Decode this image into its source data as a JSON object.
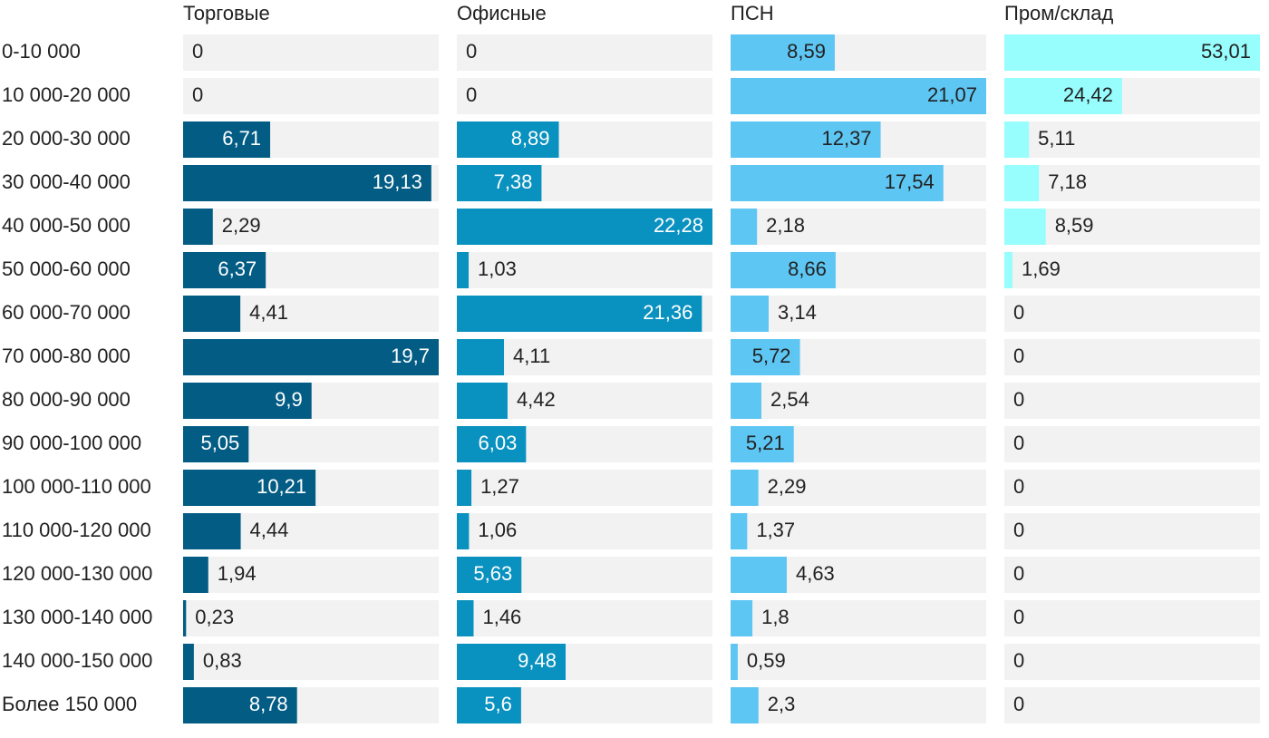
{
  "chart_data": {
    "type": "bar",
    "orientation": "horizontal",
    "layout": "small-multiples",
    "categories": [
      "0-10 000",
      "10 000-20 000",
      "20 000-30 000",
      "30 000-40 000",
      "40 000-50 000",
      "50 000-60 000",
      "60 000-70 000",
      "70 000-80 000",
      "80 000-90 000",
      "90 000-100 000",
      "100 000-110 000",
      "110 000-120 000",
      "120 000-130 000",
      "130 000-140 000",
      "140 000-150 000",
      "Более 150 000"
    ],
    "series": [
      {
        "name": "Торговые",
        "color": "#035c84",
        "xlim": [
          0,
          19.7
        ],
        "values": [
          0,
          0,
          6.71,
          19.13,
          2.29,
          6.37,
          4.41,
          19.7,
          9.9,
          5.05,
          10.21,
          4.44,
          1.94,
          0.23,
          0.83,
          8.78
        ],
        "labels": [
          "0",
          "0",
          "6,71",
          "19,13",
          "2,29",
          "6,37",
          "4,41",
          "19,7",
          "9,9",
          "5,05",
          "10,21",
          "4,44",
          "1,94",
          "0,23",
          "0,83",
          "8,78"
        ]
      },
      {
        "name": "Офисные",
        "color": "#0991bf",
        "xlim": [
          0,
          22.28
        ],
        "values": [
          0,
          0,
          8.89,
          7.38,
          22.28,
          1.03,
          21.36,
          4.11,
          4.42,
          6.03,
          1.27,
          1.06,
          5.63,
          1.46,
          9.48,
          5.6
        ],
        "labels": [
          "0",
          "0",
          "8,89",
          "7,38",
          "22,28",
          "1,03",
          "21,36",
          "4,11",
          "4,42",
          "6,03",
          "1,27",
          "1,06",
          "5,63",
          "1,46",
          "9,48",
          "5,6"
        ]
      },
      {
        "name": "ПСН",
        "color": "#5ec6f3",
        "xlim": [
          0,
          21.07
        ],
        "values": [
          8.59,
          21.07,
          12.37,
          17.54,
          2.18,
          8.66,
          3.14,
          5.72,
          2.54,
          5.21,
          2.29,
          1.37,
          4.63,
          1.8,
          0.59,
          2.3
        ],
        "labels": [
          "8,59",
          "21,07",
          "12,37",
          "17,54",
          "2,18",
          "8,66",
          "3,14",
          "5,72",
          "2,54",
          "5,21",
          "2,29",
          "1,37",
          "4,63",
          "1,8",
          "0,59",
          "2,3"
        ]
      },
      {
        "name": "Пром/склад",
        "color": "#97fdfd",
        "xlim": [
          0,
          53.01
        ],
        "values": [
          53.01,
          24.42,
          5.11,
          7.18,
          8.59,
          1.69,
          0,
          0,
          0,
          0,
          0,
          0,
          0,
          0,
          0,
          0
        ],
        "labels": [
          "53,01",
          "24,42",
          "5,11",
          "7,18",
          "8,59",
          "1,69",
          "0",
          "0",
          "0",
          "0",
          "0",
          "0",
          "0",
          "0",
          "0",
          "0"
        ]
      }
    ],
    "track_color": "#f2f2f2",
    "title": "",
    "xlabel": "",
    "ylabel": "",
    "grid": false,
    "legend": "none"
  }
}
